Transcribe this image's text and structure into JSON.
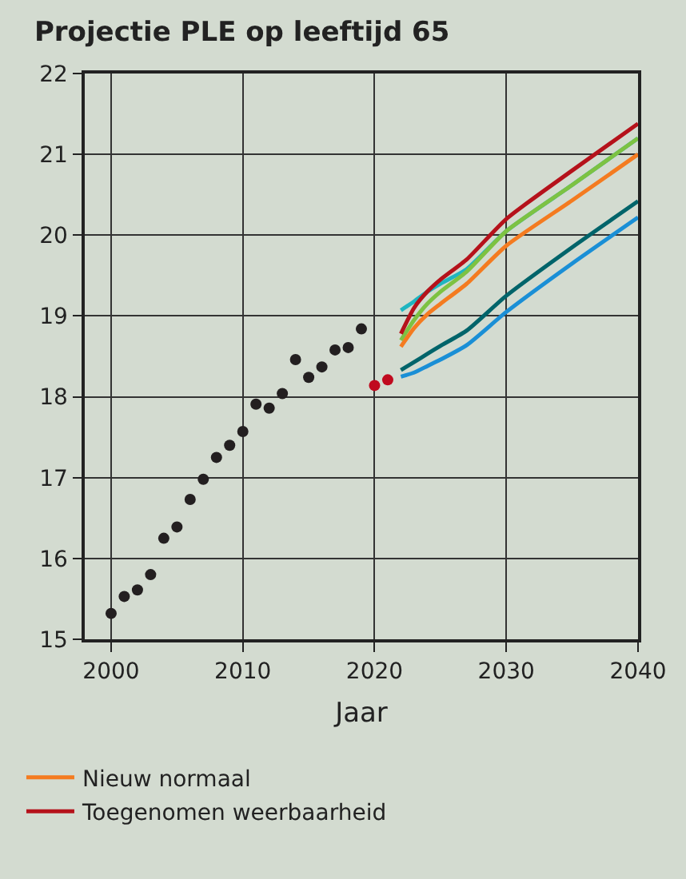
{
  "chart_data": {
    "type": "line",
    "title": "Projectie PLE op leeftijd 65",
    "xlabel": "Jaar",
    "xlim": [
      1998,
      2040
    ],
    "xticks": [
      2000,
      2010,
      2020,
      2030,
      2040
    ],
    "ylim": [
      15,
      22
    ],
    "yticks": [
      15,
      16,
      17,
      18,
      19,
      20,
      21,
      22
    ],
    "grid": true,
    "legend": "bottom",
    "line_style": "solid",
    "series": [
      {
        "type": "scatter",
        "color": "#231f20",
        "x": [
          2000,
          2001,
          2002,
          2003,
          2004,
          2005,
          2006,
          2007,
          2008,
          2009,
          2010,
          2011,
          2012,
          2013,
          2014,
          2015,
          2016,
          2017,
          2018,
          2019
        ],
        "values": [
          15.32,
          15.53,
          15.61,
          15.8,
          16.25,
          16.39,
          16.73,
          16.98,
          17.25,
          17.4,
          17.57,
          17.91,
          17.86,
          18.04,
          18.46,
          18.24,
          18.37,
          18.58,
          18.61,
          18.84
        ]
      },
      {
        "type": "scatter",
        "color": "#c00a1e",
        "x": [
          2020,
          2021
        ],
        "values": [
          18.14,
          18.21
        ]
      },
      {
        "color": "#1fb5c0",
        "x": [
          2022,
          2023,
          2024,
          2025,
          2027,
          2030,
          2035,
          2040
        ],
        "values": [
          19.07,
          19.18,
          19.3,
          19.4,
          19.58,
          20.05,
          20.62,
          21.2
        ]
      },
      {
        "color": "#7dc242",
        "x": [
          2022,
          2023,
          2024,
          2025,
          2027,
          2030,
          2035,
          2040
        ],
        "values": [
          18.7,
          18.95,
          19.15,
          19.3,
          19.55,
          20.05,
          20.62,
          21.2
        ]
      },
      {
        "name": "Nieuw normaal",
        "color": "#f47b20",
        "x": [
          2022,
          2023,
          2024,
          2025,
          2027,
          2030,
          2035,
          2040
        ],
        "values": [
          18.62,
          18.85,
          19.02,
          19.15,
          19.4,
          19.87,
          20.43,
          21.0
        ]
      },
      {
        "name": "Toegenomen weerbaarheid",
        "color": "#b5121b",
        "x": [
          2022,
          2023,
          2024,
          2025,
          2027,
          2030,
          2035,
          2040
        ],
        "values": [
          18.78,
          19.1,
          19.3,
          19.45,
          19.7,
          20.2,
          20.8,
          21.38
        ]
      },
      {
        "color": "#00646a",
        "x": [
          2022,
          2023,
          2024,
          2025,
          2027,
          2030,
          2035,
          2040
        ],
        "values": [
          18.33,
          18.43,
          18.53,
          18.63,
          18.82,
          19.25,
          19.85,
          20.42
        ]
      },
      {
        "color": "#1a8fd6",
        "x": [
          2022,
          2023,
          2024,
          2025,
          2027,
          2030,
          2035,
          2040
        ],
        "values": [
          18.25,
          18.3,
          18.38,
          18.46,
          18.64,
          19.05,
          19.65,
          20.22
        ]
      }
    ]
  }
}
